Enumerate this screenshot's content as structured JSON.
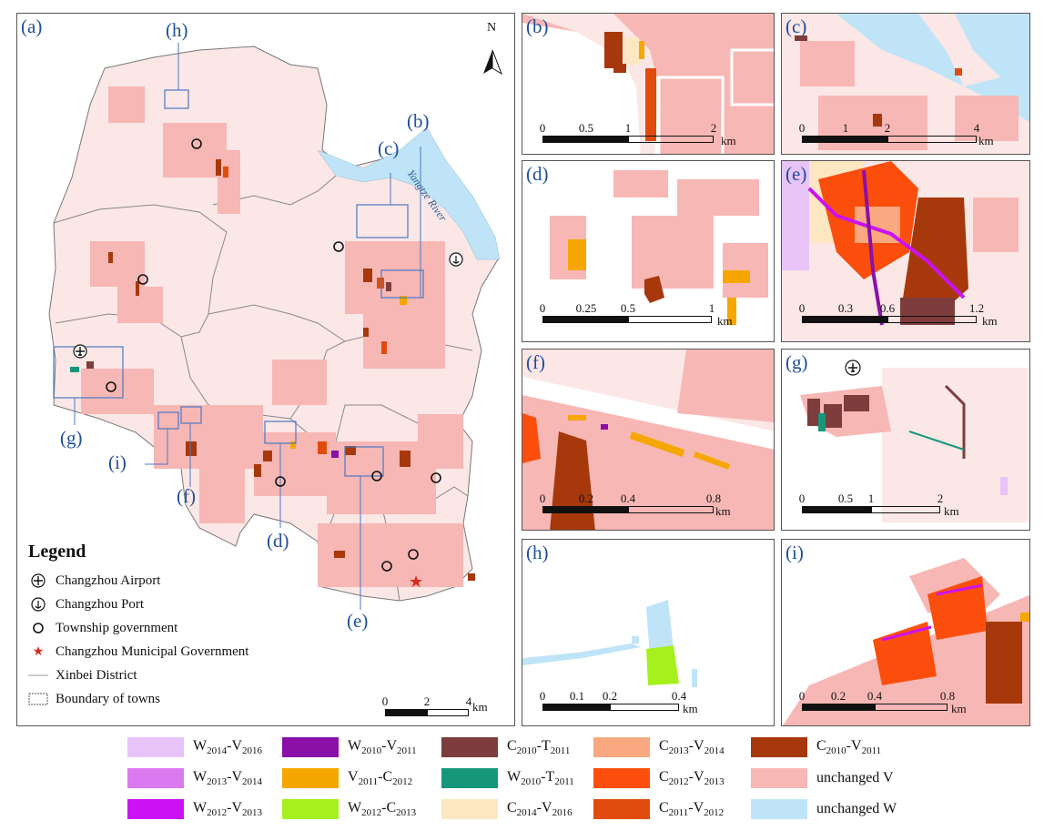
{
  "colors": {
    "W2014_V2016": "#e8c3f7",
    "W2013_V2014": "#db79f0",
    "W2012_V2013": "#cc11f5",
    "W2010_V2011": "#8a10a8",
    "V2011_C2012": "#f5a700",
    "W2012_C2013": "#a6f01e",
    "C2010_T2011": "#7e3c3c",
    "W2010_T2011": "#16977a",
    "C2014_V2016": "#fde6c2",
    "C2013_V2014": "#f9a880",
    "C2012_V2013": "#fb4e0c",
    "C2011_V2012": "#e04b0e",
    "C2010_V2011": "#a6380b",
    "unchanged_V": "#f7b7b5",
    "unchanged_W": "#bfe4f7",
    "label_blue": "#1f4e9a",
    "box_blue": "#4a78c2",
    "gov_red": "#d62a1d"
  },
  "panels": {
    "a": {
      "label": "(a)",
      "north": "N",
      "scale": [
        "0",
        "2",
        "4"
      ],
      "unit": "km"
    },
    "b": {
      "label": "(b)",
      "scale": [
        "0",
        "0.5",
        "1",
        "2"
      ],
      "unit": "km"
    },
    "c": {
      "label": "(c)",
      "scale": [
        "0",
        "1",
        "2",
        "4"
      ],
      "unit": "km"
    },
    "d": {
      "label": "(d)",
      "scale": [
        "0",
        "0.25",
        "0.5",
        "1"
      ],
      "unit": "km"
    },
    "e": {
      "label": "(e)",
      "scale": [
        "0",
        "0.3",
        "0.6",
        "1.2"
      ],
      "unit": "km"
    },
    "f": {
      "label": "(f)",
      "scale": [
        "0",
        "0.2",
        "0.4",
        "0.8"
      ],
      "unit": "km"
    },
    "g": {
      "label": "(g)",
      "scale": [
        "0",
        "0.5",
        "1",
        "2"
      ],
      "unit": "km"
    },
    "h": {
      "label": "(h)",
      "scale": [
        "0",
        "0.1",
        "0.2",
        "0.4"
      ],
      "unit": "km"
    },
    "i": {
      "label": "(i)",
      "scale": [
        "0",
        "0.2",
        "0.4",
        "0.8"
      ],
      "unit": "km"
    }
  },
  "callouts": [
    "(h)",
    "(c)",
    "(b)",
    "(g)",
    "(i)",
    "(f)",
    "(d)",
    "(e)"
  ],
  "river_label": "Yangtze River",
  "legend": {
    "title": "Legend",
    "items": [
      {
        "icon": "airport-icon",
        "label": "Changzhou Airport"
      },
      {
        "icon": "port-anchor-icon",
        "label": "Changzhou Port"
      },
      {
        "icon": "township-circle-icon",
        "label": "Township government"
      },
      {
        "icon": "star-icon",
        "label": "Changzhou Municipal Government"
      },
      {
        "icon": "district-line-icon",
        "label": "Xinbei District"
      },
      {
        "icon": "town-boundary-icon",
        "label": "Boundary of towns"
      }
    ]
  },
  "class_legend": [
    {
      "a": "W",
      "as": "2014",
      "b": "V",
      "bs": "2016",
      "color": "#e8c3f7"
    },
    {
      "a": "W",
      "as": "2013",
      "b": "V",
      "bs": "2014",
      "color": "#db79f0"
    },
    {
      "a": "W",
      "as": "2012",
      "b": "V",
      "bs": "2013",
      "color": "#cc11f5"
    },
    {
      "a": "W",
      "as": "2010",
      "b": "V",
      "bs": "2011",
      "color": "#8a10a8"
    },
    {
      "a": "V",
      "as": "2011",
      "b": "C",
      "bs": "2012",
      "color": "#f5a700"
    },
    {
      "a": "W",
      "as": "2012",
      "b": "C",
      "bs": "2013",
      "color": "#a6f01e"
    },
    {
      "a": "C",
      "as": "2010",
      "b": "T",
      "bs": "2011",
      "color": "#7e3c3c"
    },
    {
      "a": "W",
      "as": "2010",
      "b": "T",
      "bs": "2011",
      "color": "#16977a"
    },
    {
      "a": "C",
      "as": "2014",
      "b": "V",
      "bs": "2016",
      "color": "#fde6c2"
    },
    {
      "a": "C",
      "as": "2013",
      "b": "V",
      "bs": "2014",
      "color": "#f9a880"
    },
    {
      "a": "C",
      "as": "2012",
      "b": "V",
      "bs": "2013",
      "color": "#fb4e0c"
    },
    {
      "a": "C",
      "as": "2011",
      "b": "V",
      "bs": "2012",
      "color": "#e04b0e"
    },
    {
      "a": "C",
      "as": "2010",
      "b": "V",
      "bs": "2011",
      "color": "#a6380b"
    },
    {
      "plain": "unchanged V",
      "color": "#f7b7b5"
    },
    {
      "plain": "unchanged W",
      "color": "#bfe4f7"
    }
  ]
}
